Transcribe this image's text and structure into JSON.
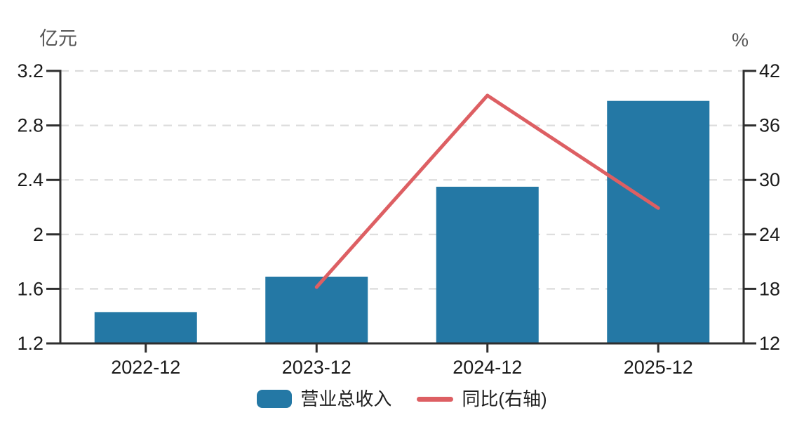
{
  "chart_data": {
    "type": "bar",
    "combo_types": [
      "bar",
      "line"
    ],
    "title": "",
    "categories": [
      "2022-12",
      "2023-12",
      "2024-12",
      "2025-12"
    ],
    "series": [
      {
        "name": "营业总收入",
        "type": "bar",
        "axis": "left",
        "color": "#2478A5",
        "values": [
          1.43,
          1.69,
          2.35,
          2.98
        ]
      },
      {
        "name": "同比(右轴)",
        "type": "line",
        "axis": "right",
        "color": "#DD5F63",
        "values": [
          null,
          18.2,
          39.3,
          26.9
        ]
      }
    ],
    "left_axis": {
      "unit": "亿元",
      "min": 1.2,
      "max": 3.2,
      "tick_labels": [
        "3.2",
        "2.8",
        "2.4",
        "2",
        "1.6",
        "1.2"
      ]
    },
    "right_axis": {
      "unit": "%",
      "min": 12,
      "max": 42,
      "tick_labels": [
        "42",
        "36",
        "30",
        "24",
        "18",
        "12"
      ]
    },
    "grid": {
      "horizontal_dashed": true,
      "color": "#DCDCDC"
    },
    "legend_position": "bottom-center",
    "colors": {
      "axis": "#2E2E2E",
      "tick_label": "#1A1A1A",
      "unit_label": "#555555",
      "background": "#FFFFFF"
    }
  }
}
